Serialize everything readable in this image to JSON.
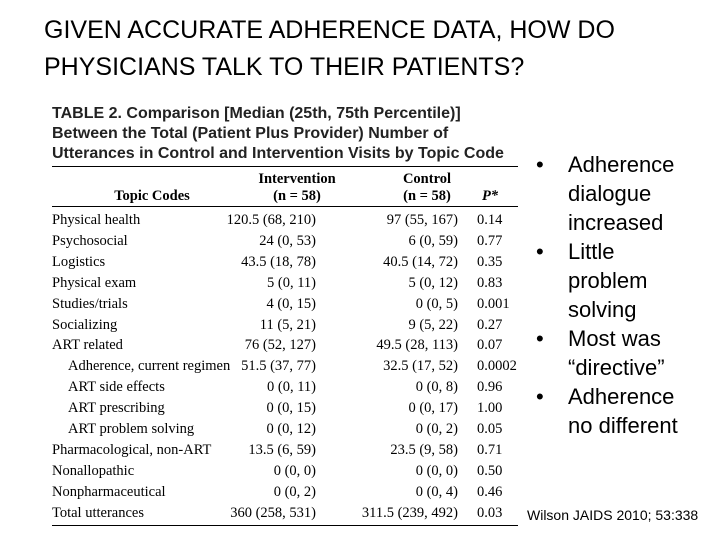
{
  "title": "GIVEN ACCURATE ADHERENCE DATA, HOW DO PHYSICIANS TALK TO THEIR PATIENTS?",
  "table": {
    "caption_label": "TABLE 2.",
    "caption": "Comparison [Median (25th, 75th Percentile)] Between the Total (Patient Plus Provider) Number of Utterances in Control and Intervention Visits by Topic Code",
    "headers": [
      [
        "Topic Codes"
      ],
      [
        "Intervention",
        "(n = 58)"
      ],
      [
        "Control",
        "(n = 58)"
      ],
      [
        "P*"
      ]
    ],
    "rows": [
      {
        "cells": [
          "Physical health",
          "120.5 (68, 210)",
          "97 (55, 167)",
          "0.14"
        ]
      },
      {
        "cells": [
          "Psychosocial",
          "24 (0, 53)",
          "6 (0, 59)",
          "0.77"
        ]
      },
      {
        "cells": [
          "Logistics",
          "43.5 (18, 78)",
          "40.5 (14, 72)",
          "0.35"
        ]
      },
      {
        "cells": [
          "Physical exam",
          "5 (0, 11)",
          "5 (0, 12)",
          "0.83"
        ]
      },
      {
        "cells": [
          "Studies/trials",
          "4 (0, 15)",
          "0 (0, 5)",
          "0.001"
        ]
      },
      {
        "cells": [
          "Socializing",
          "11 (5, 21)",
          "9 (5, 22)",
          "0.27"
        ]
      },
      {
        "cells": [
          "ART related",
          "76 (52, 127)",
          "49.5 (28, 113)",
          "0.07"
        ],
        "children": [
          [
            "Adherence, current regimen",
            "51.5 (37, 77)",
            "32.5 (17, 52)",
            "0.0002"
          ],
          [
            "ART side effects",
            "0 (0, 11)",
            "0 (0, 8)",
            "0.96"
          ],
          [
            "ART prescribing",
            "0 (0, 15)",
            "0 (0, 17)",
            "1.00"
          ],
          [
            "ART problem solving",
            "0 (0, 12)",
            "0 (0, 2)",
            "0.05"
          ]
        ]
      },
      {
        "cells": [
          "Pharmacological, non-ART",
          "13.5 (6, 59)",
          "23.5 (9, 58)",
          "0.71"
        ]
      },
      {
        "cells": [
          "Nonallopathic",
          "0 (0, 0)",
          "0 (0, 0)",
          "0.50"
        ]
      },
      {
        "cells": [
          "Nonpharmaceutical",
          "0 (0, 2)",
          "0 (0, 4)",
          "0.46"
        ]
      },
      {
        "cells": [
          "Total utterances",
          "360 (258, 531)",
          "311.5 (239, 492)",
          "0.03"
        ]
      }
    ]
  },
  "bullets": [
    "Adherence dialogue increased",
    "Little problem solving",
    "Most was “directive”",
    "Adherence no different"
  ],
  "citation": "Wilson JAIDS 2010; 53:338"
}
